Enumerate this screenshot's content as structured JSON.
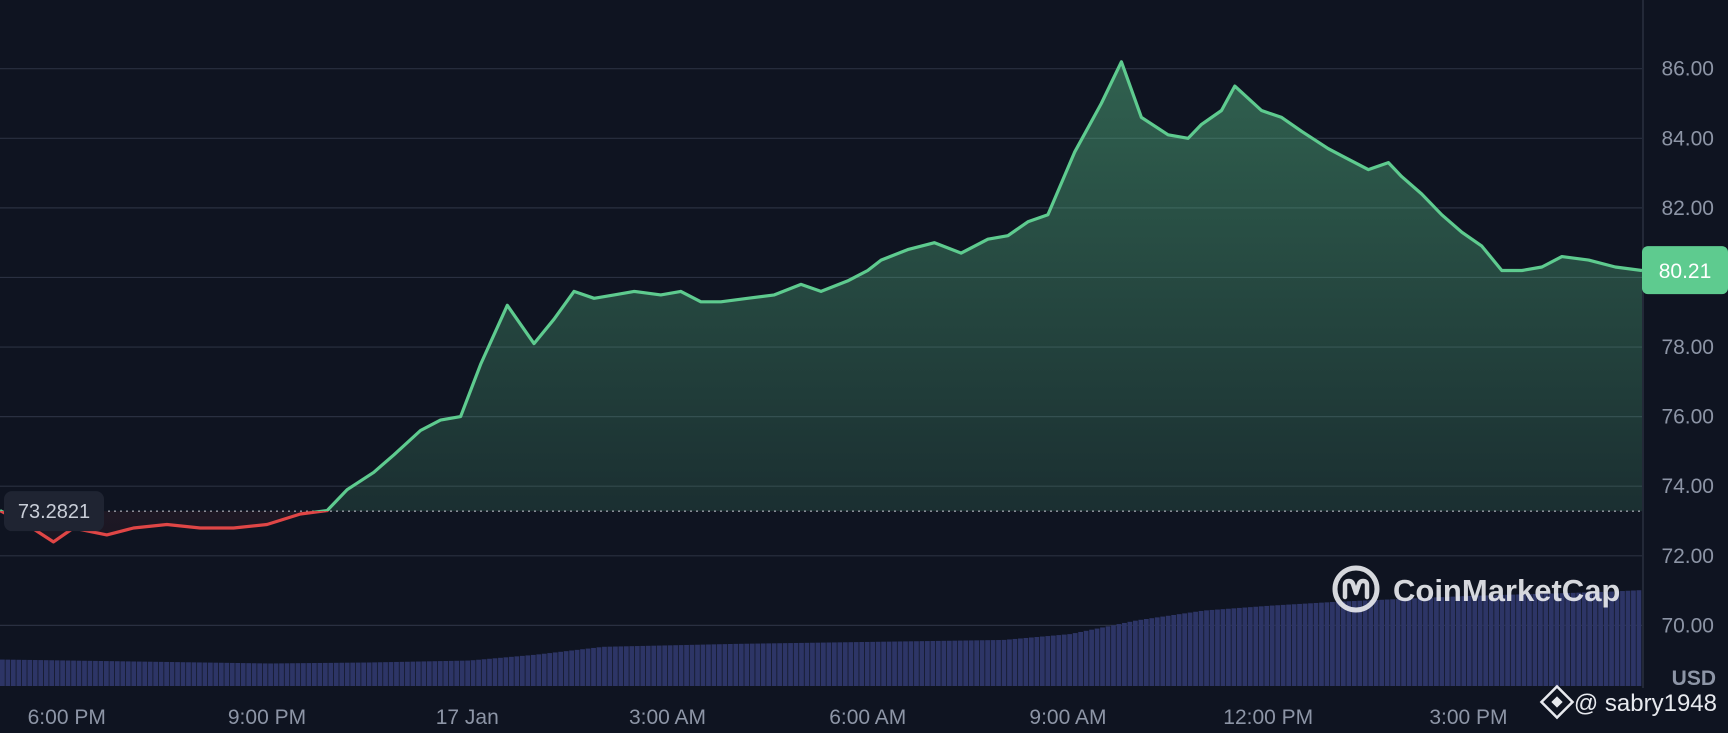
{
  "colors": {
    "background": "#0f1421",
    "grid": "#2a3041",
    "up": "#5ecb8f",
    "down": "#e04646",
    "volume": "#2d3566",
    "axis_text": "#8d95a6",
    "badge_up": "#5ecb8f",
    "badge_base": "#1f2432"
  },
  "chart_data": {
    "type": "area",
    "currency_label": "USD",
    "baseline": 73.2821,
    "baseline_label": "73.2821",
    "current_price": 80.21,
    "current_price_label": "80.21",
    "ylim": [
      68.2,
      87.4
    ],
    "y_ticks": [
      70,
      72,
      74,
      76,
      78,
      80,
      82,
      84,
      86
    ],
    "y_tick_labels": [
      "70.00",
      "72.00",
      "74.00",
      "76.00",
      "78.00",
      "80.00",
      "82.00",
      "84.00",
      "86.00"
    ],
    "x_ticks": [
      18,
      21,
      24,
      27,
      30,
      33,
      36,
      39
    ],
    "x_tick_labels": [
      "6:00 PM",
      "9:00 PM",
      "17 Jan",
      "3:00 AM",
      "6:00 AM",
      "9:00 AM",
      "12:00 PM",
      "3:00 PM"
    ],
    "xlim": [
      17.0,
      41.6
    ],
    "x_unit": "hours after 00:00 on 16 Jan",
    "series": [
      {
        "x": [
          17.0,
          17.4,
          17.8,
          18.1,
          18.6,
          19.0,
          19.5,
          20.0,
          20.5,
          21.0,
          21.5,
          21.9,
          22.2,
          22.6,
          22.9,
          23.3,
          23.6,
          23.9,
          24.2,
          24.6,
          25.0,
          25.3,
          25.6,
          25.9,
          26.2,
          26.5,
          26.9,
          27.2,
          27.5,
          27.8,
          28.2,
          28.6,
          29.0,
          29.3,
          29.7,
          30.0,
          30.2,
          30.6,
          31.0,
          31.4,
          31.8,
          32.1,
          32.4,
          32.7,
          33.1,
          33.5,
          33.8,
          34.1,
          34.5,
          34.8,
          35.0,
          35.3,
          35.5,
          35.9,
          36.2,
          36.5,
          36.9,
          37.2,
          37.5,
          37.8,
          38.0,
          38.3,
          38.6,
          38.9,
          39.2,
          39.5,
          39.8,
          40.1,
          40.4,
          40.8,
          41.2,
          41.6
        ],
        "y": [
          73.3,
          72.9,
          72.4,
          72.8,
          72.6,
          72.8,
          72.9,
          72.8,
          72.8,
          72.9,
          73.2,
          73.3,
          73.9,
          74.4,
          74.9,
          75.6,
          75.9,
          76.0,
          77.5,
          79.2,
          78.1,
          78.8,
          79.6,
          79.4,
          79.5,
          79.6,
          79.5,
          79.6,
          79.3,
          79.3,
          79.4,
          79.5,
          79.8,
          79.6,
          79.9,
          80.2,
          80.5,
          80.8,
          81.0,
          80.7,
          81.1,
          81.2,
          81.6,
          81.8,
          83.6,
          85.0,
          86.2,
          84.6,
          84.1,
          84.0,
          84.4,
          84.8,
          85.5,
          84.8,
          84.6,
          84.2,
          83.7,
          83.4,
          83.1,
          83.3,
          82.9,
          82.4,
          81.8,
          81.3,
          80.9,
          80.2,
          80.2,
          80.3,
          80.6,
          80.5,
          80.3,
          80.2
        ]
      }
    ],
    "volume": {
      "x": [
        17.0,
        19.0,
        21.0,
        22.5,
        24.0,
        25.0,
        26.0,
        28.0,
        30.0,
        32.0,
        33.0,
        34.0,
        35.0,
        36.0,
        37.0,
        38.0,
        39.0,
        40.0,
        41.0,
        41.6
      ],
      "level": [
        0.27,
        0.25,
        0.23,
        0.24,
        0.26,
        0.32,
        0.4,
        0.43,
        0.45,
        0.47,
        0.53,
        0.67,
        0.77,
        0.82,
        0.86,
        0.89,
        0.92,
        0.94,
        0.96,
        0.98
      ]
    }
  },
  "watermark": {
    "brand": "CoinMarketCap",
    "handle": "@ sabry1948"
  }
}
